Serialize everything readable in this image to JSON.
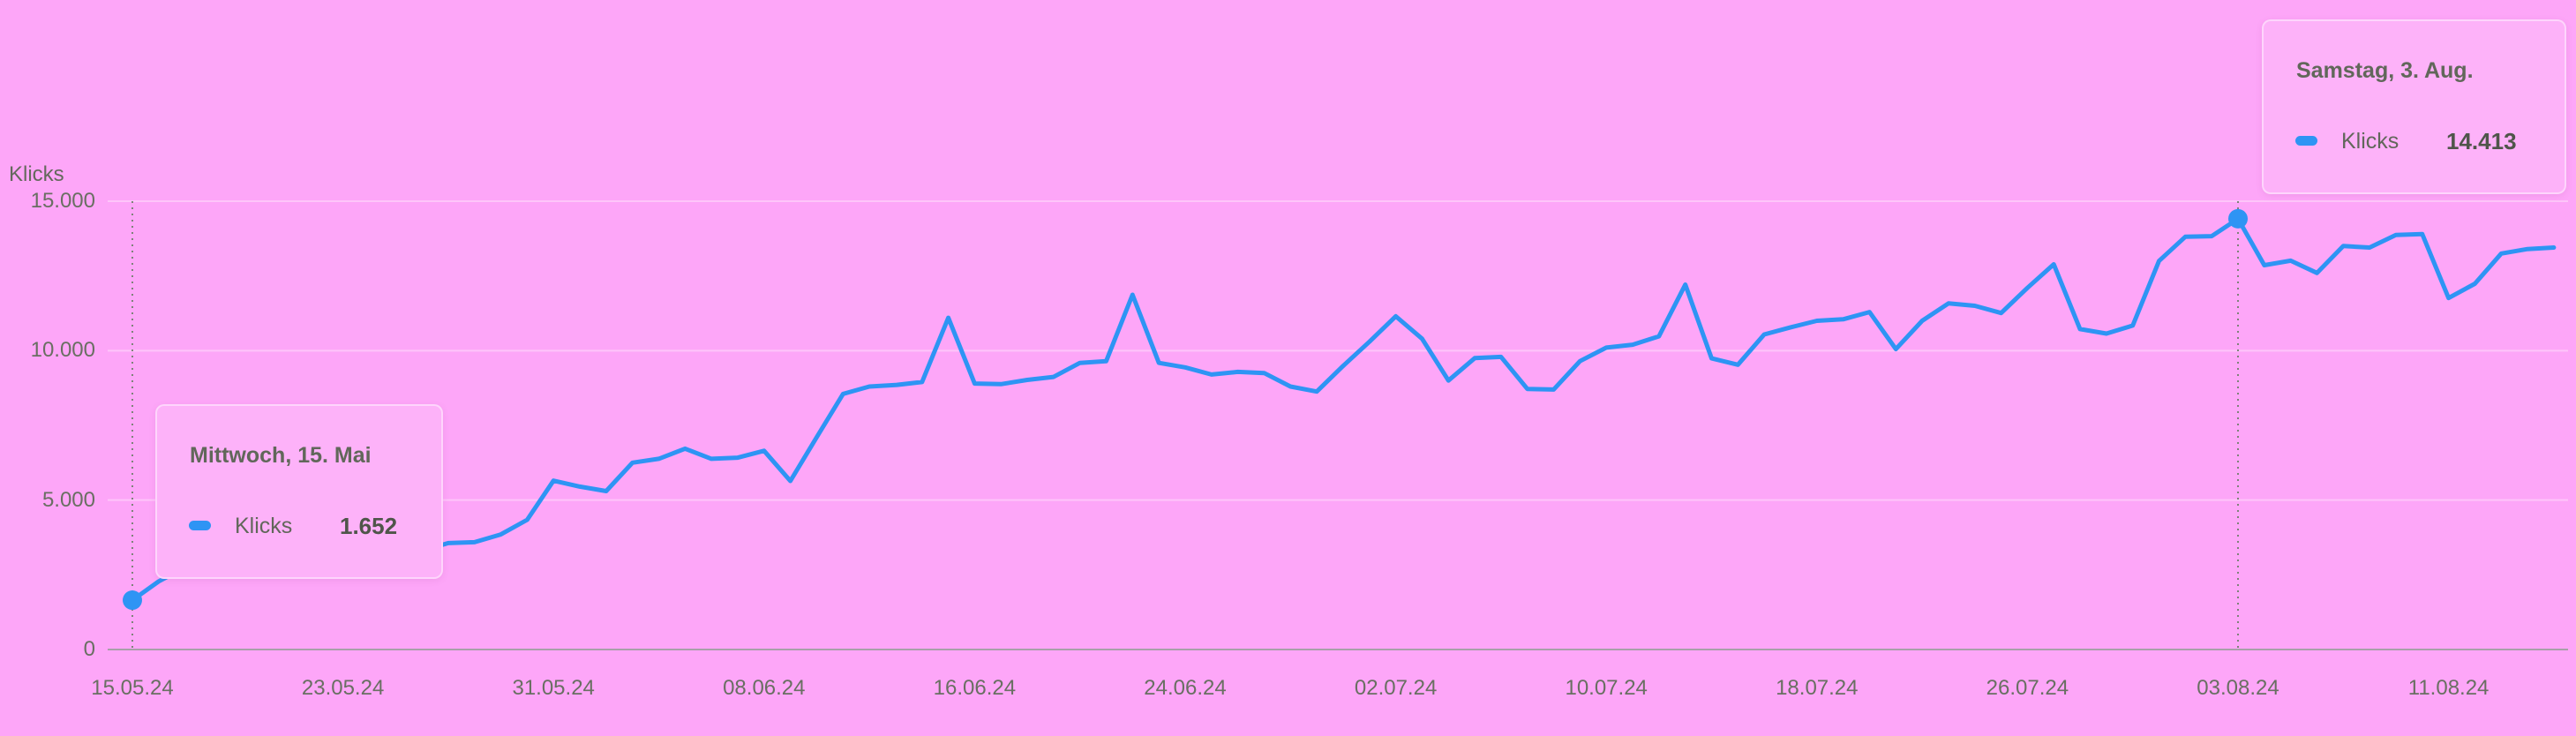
{
  "chart_data": {
    "type": "line",
    "title": "",
    "ylabel": "Klicks",
    "series_name": "Klicks",
    "line_color": "#2e94f4",
    "grid": "horizontal",
    "ylim": [
      0,
      15000
    ],
    "y_ticks": [
      0,
      5000,
      10000,
      15000
    ],
    "y_tick_labels": [
      "0",
      "5.000",
      "10.000",
      "15.000"
    ],
    "x_tick_labels": [
      "15.05.24",
      "23.05.24",
      "31.05.24",
      "08.06.24",
      "16.06.24",
      "24.06.24",
      "02.07.24",
      "10.07.24",
      "18.07.24",
      "26.07.24",
      "03.08.24",
      "11.08.24"
    ],
    "x_tick_step_days": 8,
    "selected_indices": [
      0,
      80
    ],
    "dates": [
      "15.05.24",
      "16.05.24",
      "17.05.24",
      "18.05.24",
      "19.05.24",
      "20.05.24",
      "21.05.24",
      "22.05.24",
      "23.05.24",
      "24.05.24",
      "25.05.24",
      "26.05.24",
      "27.05.24",
      "28.05.24",
      "29.05.24",
      "30.05.24",
      "31.05.24",
      "01.06.24",
      "02.06.24",
      "03.06.24",
      "04.06.24",
      "05.06.24",
      "06.06.24",
      "07.06.24",
      "08.06.24",
      "09.06.24",
      "10.06.24",
      "11.06.24",
      "12.06.24",
      "13.06.24",
      "14.06.24",
      "15.06.24",
      "16.06.24",
      "17.06.24",
      "18.06.24",
      "19.06.24",
      "20.06.24",
      "21.06.24",
      "22.06.24",
      "23.06.24",
      "24.06.24",
      "25.06.24",
      "26.06.24",
      "27.06.24",
      "28.06.24",
      "29.06.24",
      "30.06.24",
      "01.07.24",
      "02.07.24",
      "03.07.24",
      "04.07.24",
      "05.07.24",
      "06.07.24",
      "07.07.24",
      "08.07.24",
      "09.07.24",
      "10.07.24",
      "11.07.24",
      "12.07.24",
      "13.07.24",
      "14.07.24",
      "15.07.24",
      "16.07.24",
      "17.07.24",
      "18.07.24",
      "19.07.24",
      "20.07.24",
      "21.07.24",
      "22.07.24",
      "23.07.24",
      "24.07.24",
      "25.07.24",
      "26.07.24",
      "27.07.24",
      "28.07.24",
      "29.07.24",
      "30.07.24",
      "31.07.24",
      "01.08.24",
      "02.08.24",
      "03.08.24",
      "04.08.24",
      "05.08.24",
      "06.08.24",
      "07.08.24",
      "08.08.24",
      "09.08.24",
      "10.08.24",
      "11.08.24",
      "12.08.24",
      "13.08.24",
      "14.08.24",
      "15.08.24"
    ],
    "values": [
      1652,
      2280,
      2750,
      3060,
      2780,
      2850,
      3000,
      2920,
      2870,
      3050,
      3250,
      3300,
      3560,
      3590,
      3850,
      4340,
      5650,
      5450,
      5300,
      6250,
      6380,
      6720,
      6380,
      6420,
      6650,
      5640,
      7100,
      8550,
      8800,
      8850,
      8950,
      11100,
      8900,
      8880,
      9020,
      9120,
      9590,
      9650,
      11870,
      9590,
      9440,
      9200,
      9290,
      9250,
      8800,
      8630,
      9490,
      10300,
      11150,
      10400,
      9000,
      9750,
      9790,
      8720,
      8700,
      9650,
      10100,
      10200,
      10480,
      12210,
      9740,
      9530,
      10540,
      10780,
      11000,
      11050,
      11290,
      10050,
      11000,
      11580,
      11500,
      11260,
      12100,
      12890,
      10720,
      10570,
      10840,
      13000,
      13810,
      13830,
      14413,
      12860,
      13010,
      12600,
      13500,
      13450,
      13870,
      13900,
      11760,
      12240,
      13250,
      13400,
      13450
    ]
  },
  "tooltip_start": {
    "title": "Mittwoch, 15. Mai",
    "series": "Klicks",
    "value": "1.652"
  },
  "tooltip_end": {
    "title": "Samstag, 3. Aug.",
    "series": "Klicks",
    "value": "14.413"
  },
  "colors": {
    "background": "#fda6f8",
    "line": "#2e94f4",
    "axis_line": "#a89fa9",
    "gridline": "rgba(255,255,255,0.35)",
    "dotted_guide": "#7e8379",
    "text": "#696f62"
  }
}
